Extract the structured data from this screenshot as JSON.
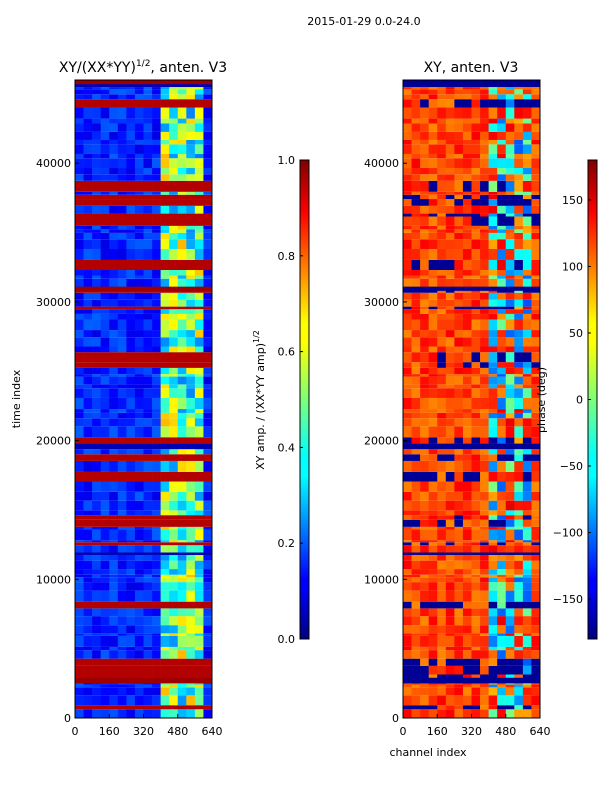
{
  "figure": {
    "suptitle": "2015-01-29 0.0-24.0"
  },
  "chart_data": [
    {
      "type": "heatmap",
      "title": "XY/(XX*YY)^{1/2}, anten. V3",
      "title_main": "XY/(XX*YY)",
      "title_sup": "1/2",
      "title_tail": ", anten. V3",
      "xlabel": "",
      "ylabel": "time index",
      "xlim": [
        0,
        640
      ],
      "ylim": [
        0,
        46000
      ],
      "xticks": [
        0,
        160,
        320,
        480,
        640
      ],
      "yticks": [
        0,
        10000,
        20000,
        30000,
        40000
      ],
      "colormap": "jet",
      "description_of_values": "mostly low amplitude (~0.1-0.2, blue) with horizontal saturated rows (~1.0, red) and higher amplitude (~0.4-0.7) in channels ~400-600",
      "colorbar": {
        "label": "XY amp. / (XX*YY amp)^{1/2}",
        "label_main": "XY amp. / (XX*YY amp)",
        "label_sup": "1/2",
        "range": [
          0.0,
          1.0
        ],
        "ticks": [
          "0.0",
          "0.2",
          "0.4",
          "0.6",
          "0.8",
          "1.0"
        ]
      }
    },
    {
      "type": "heatmap",
      "title": "XY, anten. V3",
      "xlabel": "channel index",
      "ylabel": "",
      "xlim": [
        0,
        640
      ],
      "ylim": [
        0,
        46000
      ],
      "xticks": [
        0,
        160,
        320,
        480,
        640
      ],
      "yticks": [
        0,
        10000,
        20000,
        30000,
        40000
      ],
      "colormap": "jet",
      "description_of_values": "phase mostly ~100-150 deg (orange/red) with horizontal bands near -180 (dark blue), noisier phase in channels ~400-600",
      "colorbar": {
        "label": "phase (deg)",
        "range": [
          -180,
          180
        ],
        "ticks": [
          "−150",
          "−100",
          "−50",
          "0",
          "50",
          "100",
          "150"
        ]
      }
    }
  ],
  "colors": {
    "jet_dark_blue": "#00007f",
    "jet_blue": "#0000ff",
    "jet_cyan": "#00ffff",
    "jet_yellow": "#ffff00",
    "jet_red": "#ff0000",
    "jet_dark_red": "#7f0000"
  }
}
